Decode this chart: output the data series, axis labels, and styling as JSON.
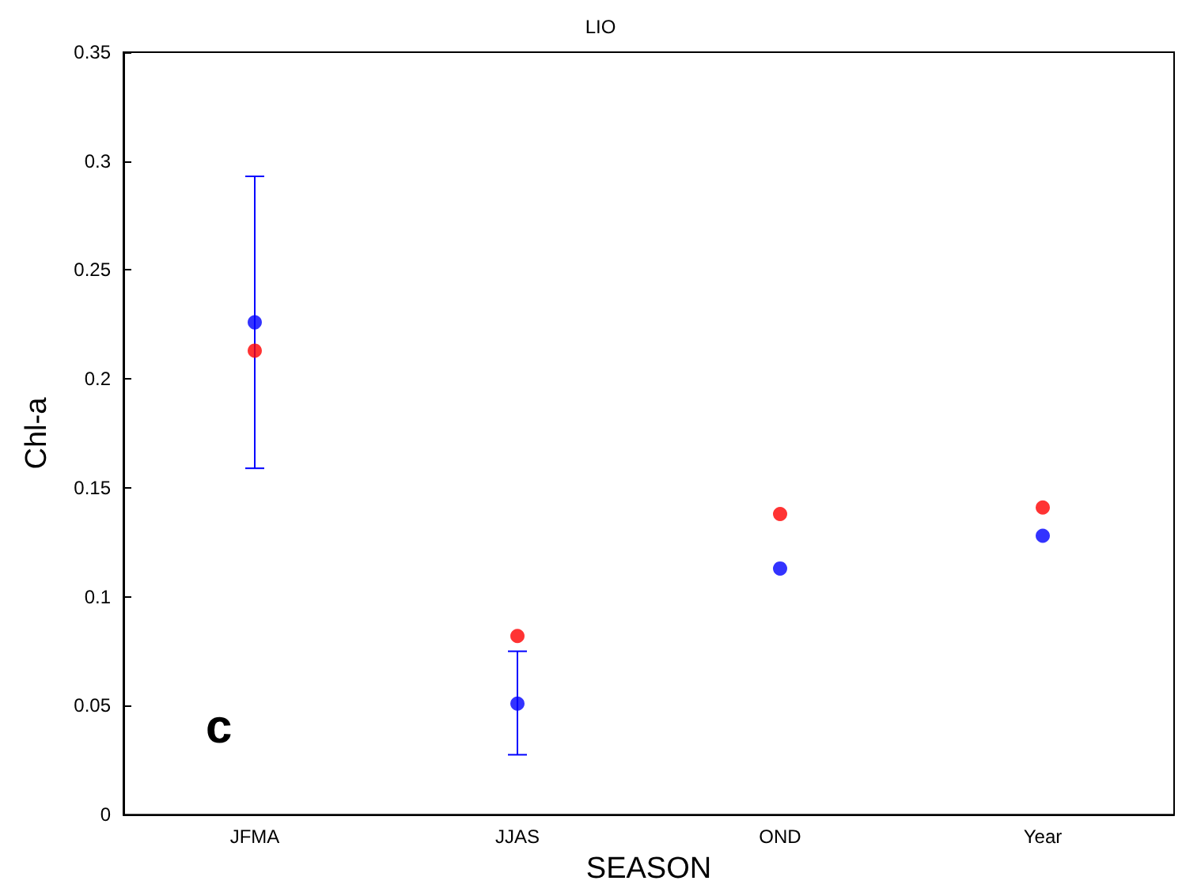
{
  "chart_data": {
    "type": "scatter",
    "title": "LIO",
    "xlabel": "SEASON",
    "ylabel": "Chl-a",
    "categories": [
      "JFMA",
      "JJAS",
      "OND",
      "Year"
    ],
    "series": [
      {
        "color": "#0000ff",
        "values": [
          0.226,
          0.051,
          0.113,
          0.128
        ],
        "errors": [
          [
            0.159,
            0.293
          ],
          [
            0.0275,
            0.075
          ],
          null,
          null
        ]
      },
      {
        "color": "#ff0000",
        "values": [
          0.213,
          0.082,
          0.138,
          0.141
        ]
      }
    ],
    "ylim": [
      0,
      0.35
    ],
    "yticks": [
      0,
      0.05,
      0.1,
      0.15,
      0.2,
      0.25,
      0.3,
      0.35
    ],
    "marker": "circle",
    "grid": false,
    "annotations": [
      "c"
    ]
  }
}
